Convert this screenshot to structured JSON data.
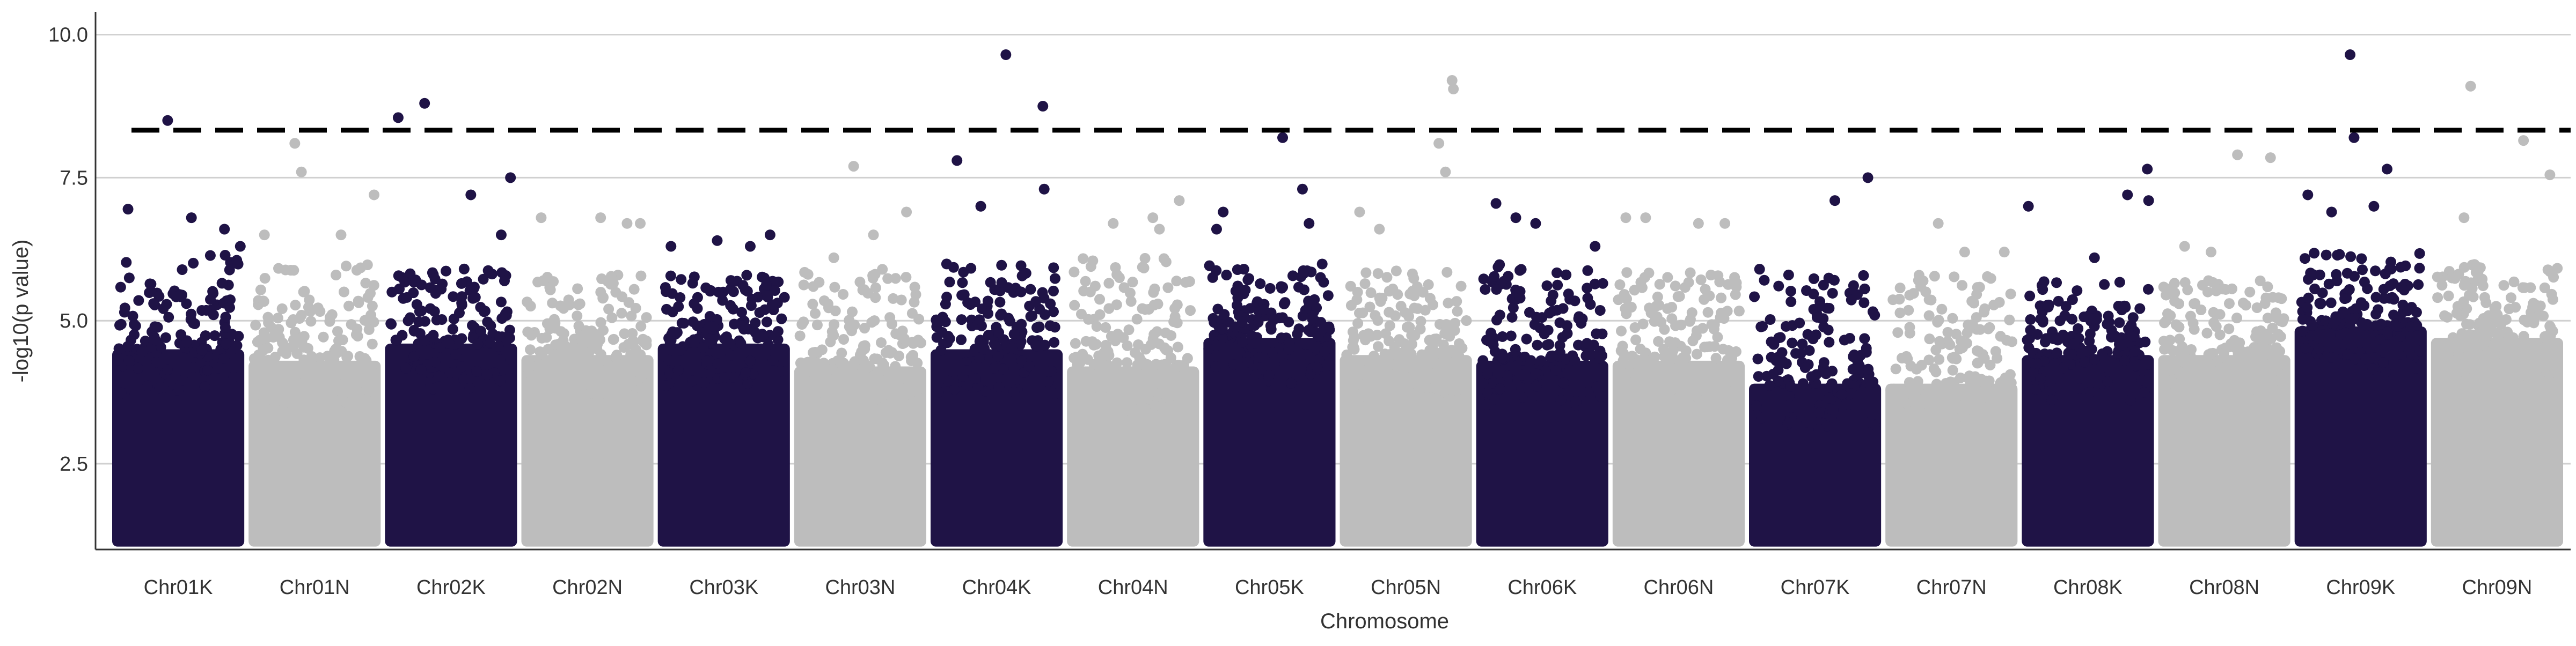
{
  "chart_data": {
    "type": "scatter",
    "title": "",
    "xlabel": "Chromosome",
    "ylabel": "-log10(p value)",
    "ylim": [
      1,
      10.4
    ],
    "y_ticks": [
      2.5,
      5.0,
      7.5,
      10.0
    ],
    "y_tick_labels": [
      "2.5",
      "5.0",
      "7.5",
      "10.0"
    ],
    "grid": "horizontal major gridlines",
    "legend": "none",
    "threshold": 8.33,
    "colors": {
      "odd": "#1f1346",
      "even": "#bdbdbd",
      "threshold": "#000000",
      "grid": "#d0d0d0",
      "axis": "#333333",
      "text": "#333333"
    },
    "categories": [
      "Chr01K",
      "Chr01N",
      "Chr02K",
      "Chr02N",
      "Chr03K",
      "Chr03N",
      "Chr04K",
      "Chr04N",
      "Chr05K",
      "Chr05N",
      "Chr06K",
      "Chr06N",
      "Chr07K",
      "Chr07N",
      "Chr08K",
      "Chr08N",
      "Chr09K",
      "Chr09N"
    ],
    "series": [
      {
        "chromosome": "Chr01K",
        "floor": 4.5,
        "peak": 6.2,
        "outliers": [
          [
            0.12,
            6.95
          ],
          [
            0.42,
            8.5
          ],
          [
            0.6,
            6.8
          ],
          [
            0.85,
            6.6
          ],
          [
            0.97,
            6.3
          ]
        ]
      },
      {
        "chromosome": "Chr01N",
        "floor": 4.3,
        "peak": 6.0,
        "outliers": [
          [
            0.12,
            6.5
          ],
          [
            0.35,
            8.1
          ],
          [
            0.4,
            7.6
          ],
          [
            0.7,
            6.5
          ],
          [
            0.95,
            7.2
          ]
        ]
      },
      {
        "chromosome": "Chr02K",
        "floor": 4.6,
        "peak": 6.0,
        "outliers": [
          [
            0.1,
            8.55
          ],
          [
            0.3,
            8.8
          ],
          [
            0.65,
            7.2
          ],
          [
            0.88,
            6.5
          ],
          [
            0.95,
            7.5
          ]
        ]
      },
      {
        "chromosome": "Chr02N",
        "floor": 4.4,
        "peak": 5.8,
        "outliers": [
          [
            0.15,
            6.8
          ],
          [
            0.6,
            6.8
          ],
          [
            0.8,
            6.7
          ],
          [
            0.9,
            6.7
          ]
        ]
      },
      {
        "chromosome": "Chr03K",
        "floor": 4.6,
        "peak": 5.8,
        "outliers": [
          [
            0.1,
            6.3
          ],
          [
            0.45,
            6.4
          ],
          [
            0.7,
            6.3
          ],
          [
            0.85,
            6.5
          ]
        ]
      },
      {
        "chromosome": "Chr03N",
        "floor": 4.2,
        "peak": 5.9,
        "outliers": [
          [
            0.3,
            6.1
          ],
          [
            0.45,
            7.7
          ],
          [
            0.6,
            6.5
          ],
          [
            0.85,
            6.9
          ]
        ]
      },
      {
        "chromosome": "Chr04K",
        "floor": 4.5,
        "peak": 6.0,
        "outliers": [
          [
            0.2,
            7.8
          ],
          [
            0.38,
            7.0
          ],
          [
            0.57,
            9.65
          ],
          [
            0.85,
            8.75
          ],
          [
            0.86,
            7.3
          ]
        ]
      },
      {
        "chromosome": "Chr04N",
        "floor": 4.2,
        "peak": 6.1,
        "outliers": [
          [
            0.35,
            6.7
          ],
          [
            0.65,
            6.8
          ],
          [
            0.85,
            7.1
          ],
          [
            0.7,
            6.6
          ]
        ]
      },
      {
        "chromosome": "Chr05K",
        "floor": 4.7,
        "peak": 6.0,
        "outliers": [
          [
            0.1,
            6.6
          ],
          [
            0.15,
            6.9
          ],
          [
            0.6,
            8.2
          ],
          [
            0.75,
            7.3
          ],
          [
            0.8,
            6.7
          ]
        ]
      },
      {
        "chromosome": "Chr05N",
        "floor": 4.4,
        "peak": 5.9,
        "outliers": [
          [
            0.15,
            6.9
          ],
          [
            0.3,
            6.6
          ],
          [
            0.75,
            8.1
          ],
          [
            0.85,
            9.2
          ],
          [
            0.86,
            9.05
          ],
          [
            0.8,
            7.6
          ]
        ]
      },
      {
        "chromosome": "Chr06K",
        "floor": 4.3,
        "peak": 6.0,
        "outliers": [
          [
            0.15,
            7.05
          ],
          [
            0.3,
            6.8
          ],
          [
            0.45,
            6.7
          ],
          [
            0.9,
            6.3
          ]
        ]
      },
      {
        "chromosome": "Chr06N",
        "floor": 4.3,
        "peak": 5.9,
        "outliers": [
          [
            0.1,
            6.8
          ],
          [
            0.25,
            6.8
          ],
          [
            0.65,
            6.7
          ],
          [
            0.85,
            6.7
          ]
        ]
      },
      {
        "chromosome": "Chr07K",
        "floor": 3.9,
        "peak": 5.8,
        "outliers": [
          [
            0.08,
            5.9
          ],
          [
            0.3,
            5.8
          ],
          [
            0.65,
            7.1
          ],
          [
            0.9,
            7.5
          ]
        ]
      },
      {
        "chromosome": "Chr07N",
        "floor": 3.9,
        "peak": 5.8,
        "outliers": [
          [
            0.4,
            6.7
          ],
          [
            0.6,
            6.2
          ],
          [
            0.9,
            6.2
          ]
        ]
      },
      {
        "chromosome": "Chr08K",
        "floor": 4.4,
        "peak": 5.7,
        "outliers": [
          [
            0.05,
            7.0
          ],
          [
            0.55,
            6.1
          ],
          [
            0.8,
            7.2
          ],
          [
            0.95,
            7.65
          ],
          [
            0.96,
            7.1
          ]
        ]
      },
      {
        "chromosome": "Chr08N",
        "floor": 4.4,
        "peak": 5.8,
        "outliers": [
          [
            0.2,
            6.3
          ],
          [
            0.4,
            6.2
          ],
          [
            0.6,
            7.9
          ],
          [
            0.85,
            7.85
          ]
        ]
      },
      {
        "chromosome": "Chr09K",
        "floor": 4.9,
        "peak": 6.2,
        "outliers": [
          [
            0.1,
            7.2
          ],
          [
            0.28,
            6.9
          ],
          [
            0.42,
            9.65
          ],
          [
            0.45,
            8.2
          ],
          [
            0.6,
            7.0
          ],
          [
            0.7,
            7.65
          ]
        ]
      },
      {
        "chromosome": "Chr09N",
        "floor": 4.7,
        "peak": 6.0,
        "outliers": [
          [
            0.25,
            6.8
          ],
          [
            0.3,
            9.1
          ],
          [
            0.7,
            8.15
          ],
          [
            0.9,
            7.55
          ]
        ]
      }
    ]
  }
}
